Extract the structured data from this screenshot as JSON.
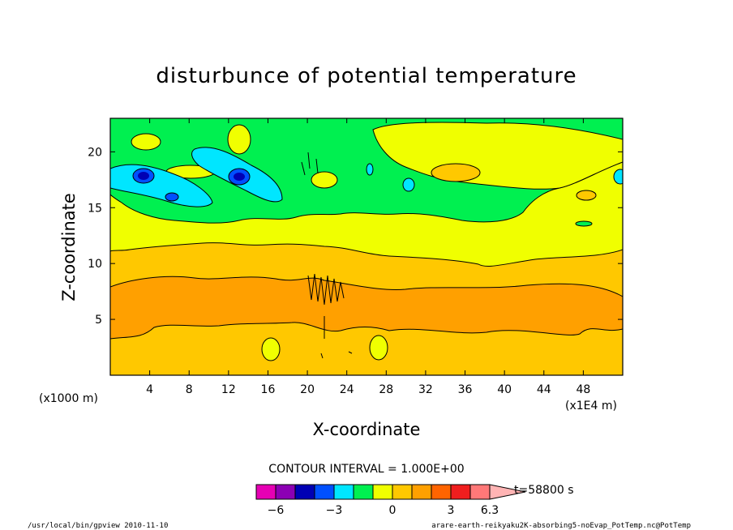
{
  "chart_data": {
    "type": "heatmap",
    "title": "disturbunce of potential temperature",
    "xlabel": "X-coordinate",
    "ylabel": "Z-coordinate",
    "x_unit_left": "(x1000 m)",
    "x_unit_right": "(x1E4 m)",
    "xlim": [
      0,
      52
    ],
    "ylim": [
      0,
      23
    ],
    "xticks": [
      4,
      8,
      12,
      16,
      20,
      24,
      28,
      32,
      36,
      40,
      44,
      48
    ],
    "yticks": [
      5,
      10,
      15,
      20
    ],
    "contour_interval_text": "CONTOUR INTERVAL = 1.000E+00",
    "time_text": "t=58800 s",
    "colorbar": {
      "colors": [
        "#e600b4",
        "#8c00b4",
        "#0000b4",
        "#0050ff",
        "#00e6ff",
        "#00f050",
        "#f0ff00",
        "#ffc800",
        "#ffa000",
        "#ff6400",
        "#f01e1e",
        "#ff7878",
        "#ffb4b4"
      ],
      "labels": [
        {
          "text": "−6",
          "value": -6
        },
        {
          "text": "−3",
          "value": -3
        },
        {
          "text": "0",
          "value": 0
        },
        {
          "text": "3",
          "value": 3
        },
        {
          "text": "6.3",
          "value": 6.3
        }
      ]
    },
    "bands": [
      {
        "level": 3,
        "color": "#ffc800",
        "z_min": 0,
        "z_max": 11
      },
      {
        "level": 4,
        "color": "#ffa000",
        "z_min": 3.5,
        "z_max": 8
      },
      {
        "level": 2,
        "color": "#f0ff00",
        "z_min": 11,
        "z_max": 16.5
      },
      {
        "level": 1,
        "color": "#00f050",
        "z_min": 13.5,
        "z_max": 23
      },
      {
        "level": 0,
        "color": "#00e6ff",
        "z_min": 16,
        "z_max": 19
      },
      {
        "level": -1,
        "color": "#0050ff",
        "z_min": 17.5,
        "z_max": 18.5
      }
    ]
  },
  "footer": {
    "left": "/usr/local/bin/gpview  2010-11-10",
    "right": "arare-earth-reikyaku2K-absorbing5-noEvap_PotTemp.nc@PotTemp"
  }
}
